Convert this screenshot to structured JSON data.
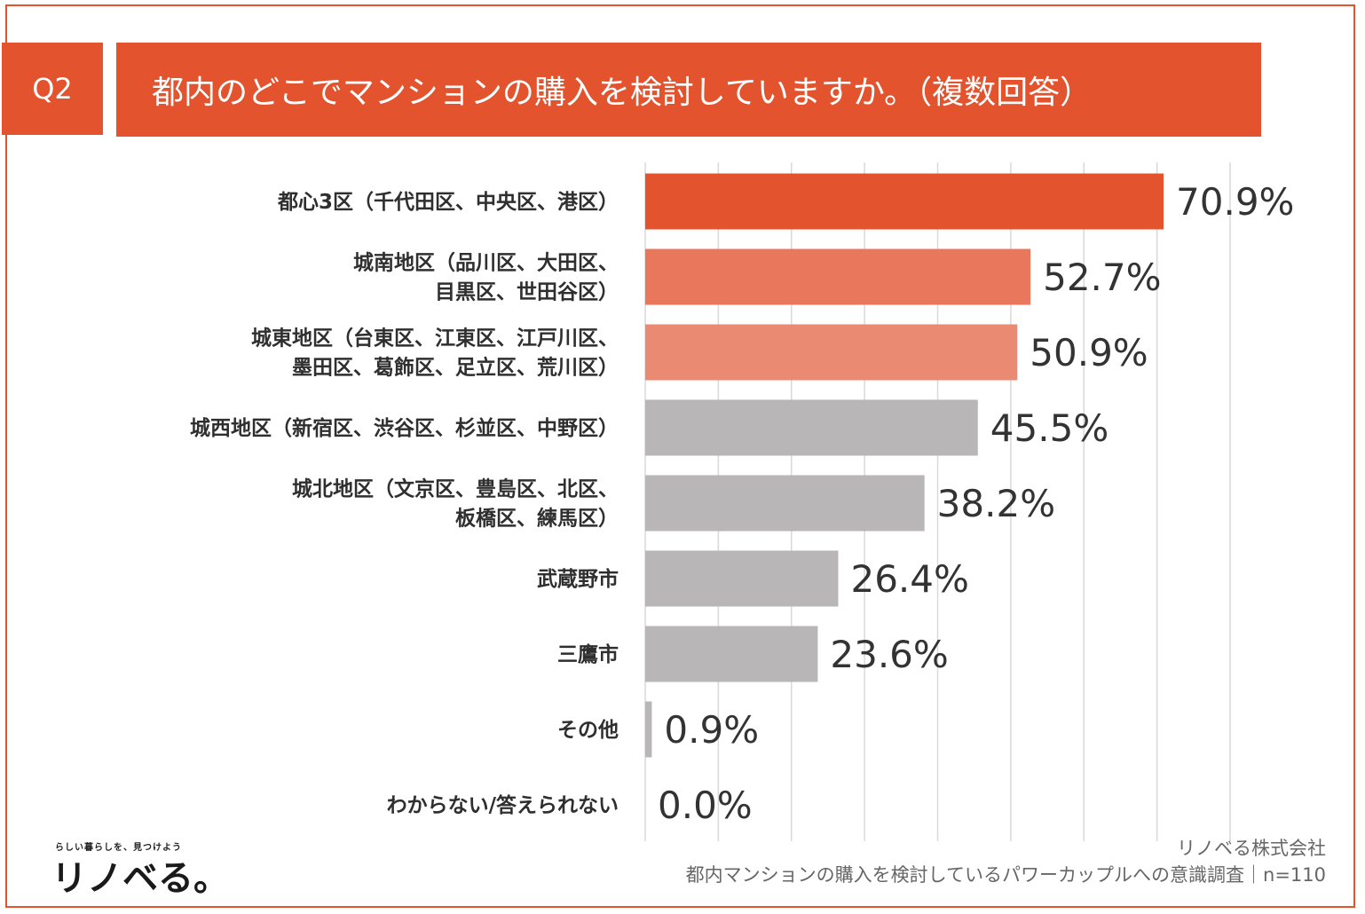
{
  "header": {
    "q_label": "Q2",
    "title": "都内のどこでマンションの購入を検討していますか。（複数回答）"
  },
  "colors": {
    "accent": "#e2532e",
    "bar_top1": "#e2532e",
    "bar_top2": "#e8775b",
    "bar_top3": "#eb8a72",
    "bar_other": "#b8b6b7",
    "grid": "#d9d9d9"
  },
  "chart_data": {
    "type": "bar",
    "orientation": "horizontal",
    "title": "都内のどこでマンションの購入を検討していますか。（複数回答）",
    "categories": [
      [
        "都心3区（千代田区、中央区、港区）"
      ],
      [
        "城南地区（品川区、大田区、",
        "目黒区、世田谷区）"
      ],
      [
        "城東地区（台東区、江東区、江戸川区、",
        "墨田区、葛飾区、足立区、荒川区）"
      ],
      [
        "城西地区（新宿区、渋谷区、杉並区、中野区）"
      ],
      [
        "城北地区（文京区、豊島区、北区、",
        "板橋区、練馬区）"
      ],
      [
        "武蔵野市"
      ],
      [
        "三鷹市"
      ],
      [
        "その他"
      ],
      [
        "わからない/答えられない"
      ]
    ],
    "values": [
      70.9,
      52.7,
      50.9,
      45.5,
      38.2,
      26.4,
      23.6,
      0.9,
      0.0
    ],
    "value_labels": [
      "70.9%",
      "52.7%",
      "50.9%",
      "45.5%",
      "38.2%",
      "26.4%",
      "23.6%",
      "0.9%",
      "0.0%"
    ],
    "xlim": [
      0,
      80
    ],
    "grid_step": 10,
    "grid": true,
    "legend": "none",
    "xlabel": "",
    "ylabel": ""
  },
  "footer": {
    "logo_tagline": "らしい暮らしを、見つけよう",
    "logo_text": "リノベる。",
    "company": "リノベる株式会社",
    "survey": "都内マンションの購入を検討しているパワーカップルへの意識調査｜n=110"
  }
}
